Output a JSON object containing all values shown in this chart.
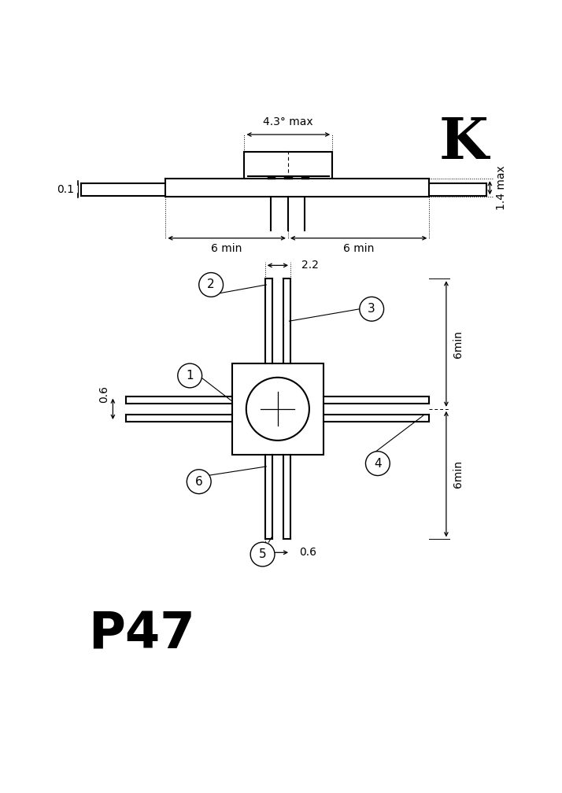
{
  "title": "K",
  "subtitle": "P47",
  "bg_color": "#ffffff",
  "line_color": "#000000",
  "top_view": {
    "dim_43_text": "4.3° max",
    "dim_1_text": "0.1",
    "dim_14_text": "1.4 max",
    "dim_6min1_text": "6 min",
    "dim_6min2_text": "6 min"
  },
  "bottom_view": {
    "dim_22_text": "2.2",
    "dim_06_text": "0.6",
    "dim_06b_text": "0.6",
    "dim_6min1_text": "6min",
    "dim_6min2_text": "6min",
    "labels": [
      "1",
      "2",
      "3",
      "4",
      "5",
      "6"
    ]
  }
}
